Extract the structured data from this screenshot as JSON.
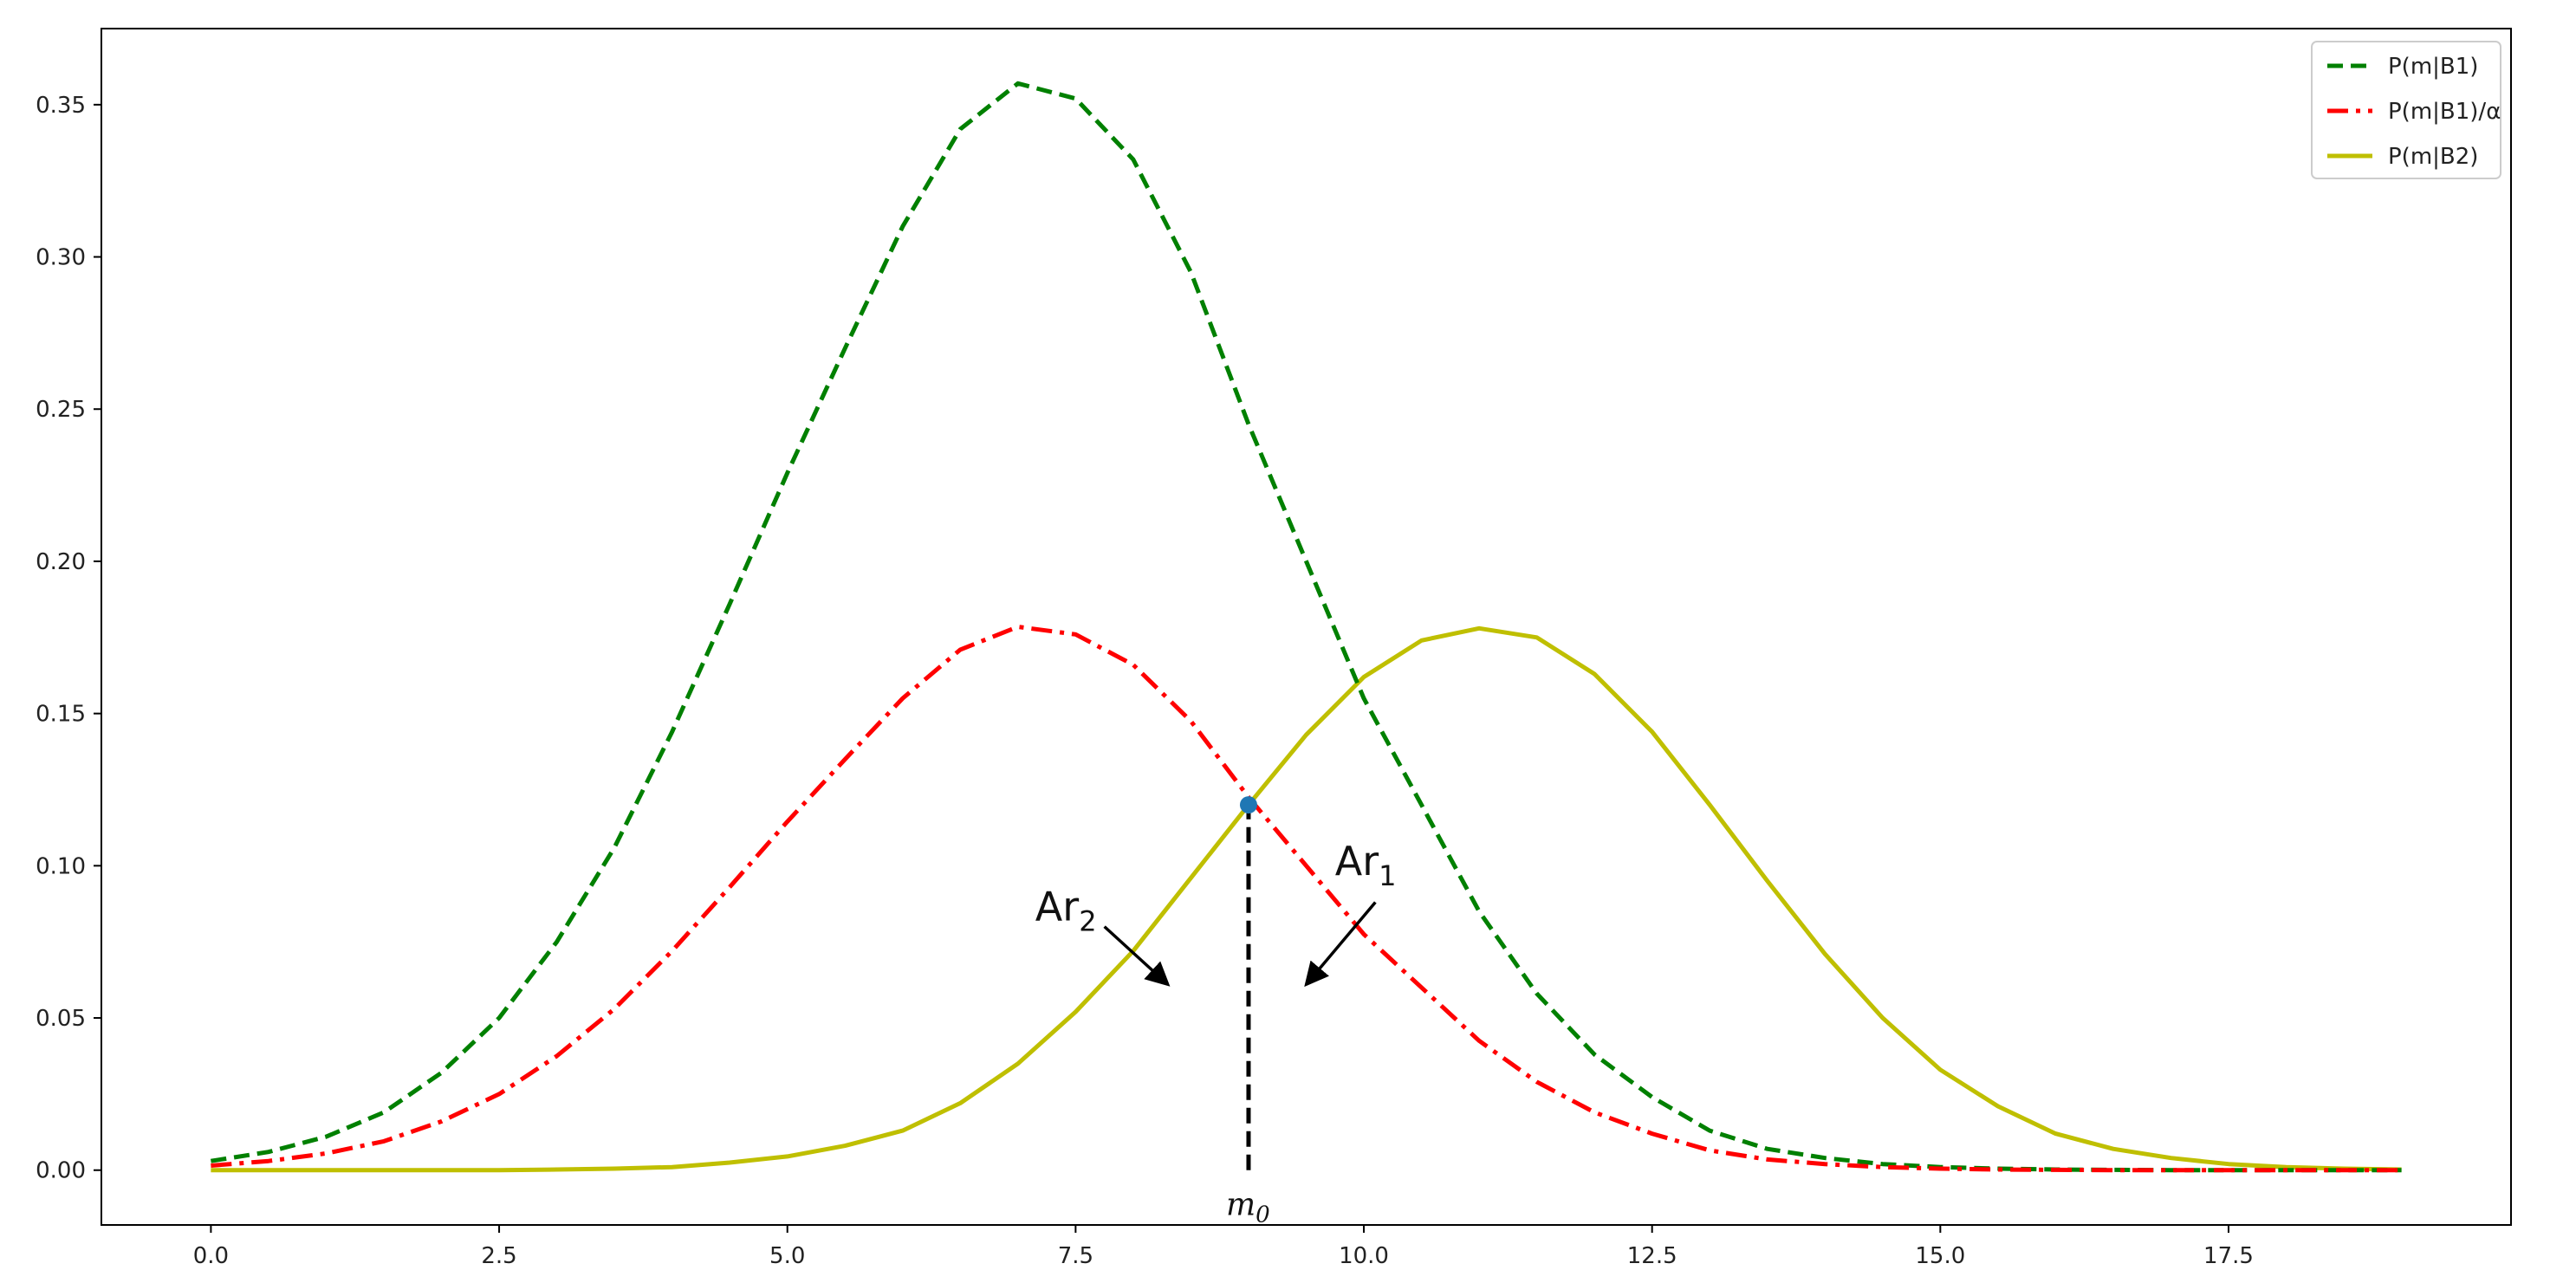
{
  "chart_data": {
    "type": "line",
    "title": "",
    "xlabel": "",
    "ylabel": "",
    "xlim": [
      -0.95,
      19.95
    ],
    "ylim": [
      -0.018,
      0.375
    ],
    "grid": false,
    "legend_position": "top-right",
    "x_ticks": [
      0.0,
      2.5,
      5.0,
      7.5,
      10.0,
      12.5,
      15.0,
      17.5
    ],
    "x_tick_labels": [
      "0.0",
      "2.5",
      "5.0",
      "7.5",
      "10.0",
      "12.5",
      "15.0",
      "17.5"
    ],
    "y_ticks": [
      0.0,
      0.05,
      0.1,
      0.15,
      0.2,
      0.25,
      0.3,
      0.35
    ],
    "y_tick_labels": [
      "0.00",
      "0.05",
      "0.10",
      "0.15",
      "0.20",
      "0.25",
      "0.30",
      "0.35"
    ],
    "series": [
      {
        "name": "P(m|B1)",
        "color": "#008000",
        "style": "dashed",
        "x": [
          0.0,
          0.5,
          1.0,
          1.5,
          2.0,
          2.5,
          3.0,
          3.5,
          4.0,
          4.5,
          5.0,
          5.5,
          6.0,
          6.5,
          7.0,
          7.5,
          8.0,
          8.5,
          9.0,
          9.5,
          10.0,
          10.5,
          11.0,
          11.5,
          12.0,
          12.5,
          13.0,
          13.5,
          14.0,
          14.5,
          15.0,
          15.5,
          16.0,
          16.5,
          17.0,
          17.5,
          18.0,
          18.5,
          19.0
        ],
        "y": [
          0.003,
          0.006,
          0.011,
          0.019,
          0.032,
          0.05,
          0.075,
          0.106,
          0.144,
          0.186,
          0.229,
          0.27,
          0.31,
          0.342,
          0.357,
          0.352,
          0.332,
          0.295,
          0.245,
          0.2,
          0.155,
          0.12,
          0.085,
          0.058,
          0.038,
          0.024,
          0.013,
          0.007,
          0.004,
          0.002,
          0.001,
          0.0005,
          0.0002,
          0.0001,
          0.0,
          0.0,
          0.0,
          0.0,
          0.0
        ]
      },
      {
        "name": "P(m|B1)/α",
        "color": "#ff0000",
        "style": "dashdot",
        "x": [
          0.0,
          0.5,
          1.0,
          1.5,
          2.0,
          2.5,
          3.0,
          3.5,
          4.0,
          4.5,
          5.0,
          5.5,
          6.0,
          6.5,
          7.0,
          7.5,
          8.0,
          8.5,
          9.0,
          9.5,
          10.0,
          10.5,
          11.0,
          11.5,
          12.0,
          12.5,
          13.0,
          13.5,
          14.0,
          14.5,
          15.0,
          15.5,
          16.0,
          16.5,
          17.0,
          17.5,
          18.0,
          18.5,
          19.0
        ],
        "y": [
          0.0015,
          0.003,
          0.0055,
          0.0095,
          0.016,
          0.025,
          0.0375,
          0.053,
          0.072,
          0.093,
          0.1145,
          0.135,
          0.155,
          0.171,
          0.1785,
          0.176,
          0.166,
          0.1475,
          0.1225,
          0.1,
          0.0775,
          0.06,
          0.0425,
          0.029,
          0.019,
          0.012,
          0.0065,
          0.0035,
          0.002,
          0.001,
          0.0005,
          0.0002,
          0.0001,
          0.0,
          0.0,
          0.0,
          0.0,
          0.0,
          0.0
        ]
      },
      {
        "name": "P(m|B2)",
        "color": "#bfbf00",
        "style": "solid",
        "x": [
          0.0,
          0.5,
          1.0,
          1.5,
          2.0,
          2.5,
          3.0,
          3.5,
          4.0,
          4.5,
          5.0,
          5.5,
          6.0,
          6.5,
          7.0,
          7.5,
          8.0,
          8.5,
          9.0,
          9.5,
          10.0,
          10.5,
          11.0,
          11.5,
          12.0,
          12.5,
          13.0,
          13.5,
          14.0,
          14.5,
          15.0,
          15.5,
          16.0,
          16.5,
          17.0,
          17.5,
          18.0,
          18.5,
          19.0
        ],
        "y": [
          0.0,
          0.0,
          0.0,
          0.0,
          0.0,
          0.0,
          0.0002,
          0.0005,
          0.001,
          0.0025,
          0.0045,
          0.008,
          0.013,
          0.022,
          0.035,
          0.052,
          0.072,
          0.096,
          0.12,
          0.143,
          0.162,
          0.174,
          0.178,
          0.175,
          0.163,
          0.144,
          0.12,
          0.095,
          0.071,
          0.05,
          0.033,
          0.021,
          0.012,
          0.007,
          0.004,
          0.002,
          0.001,
          0.0005,
          0.0002
        ]
      }
    ],
    "intersection_point": {
      "x": 9.0,
      "y": 0.12,
      "color": "#1f77b4"
    },
    "vertical_marker": {
      "x": 9.0,
      "y_from": 0.0,
      "y_to": 0.12,
      "label": "m",
      "label_sub": "0"
    },
    "annotations": [
      {
        "text": "Ar",
        "sub": "2",
        "text_x": 7.15,
        "text_y": 0.082,
        "arrow_from": [
          7.75,
          0.08
        ],
        "arrow_to": [
          8.3,
          0.061
        ]
      },
      {
        "text": "Ar",
        "sub": "1",
        "text_x": 9.75,
        "text_y": 0.097,
        "arrow_from": [
          10.1,
          0.088
        ],
        "arrow_to": [
          9.5,
          0.061
        ]
      }
    ]
  }
}
